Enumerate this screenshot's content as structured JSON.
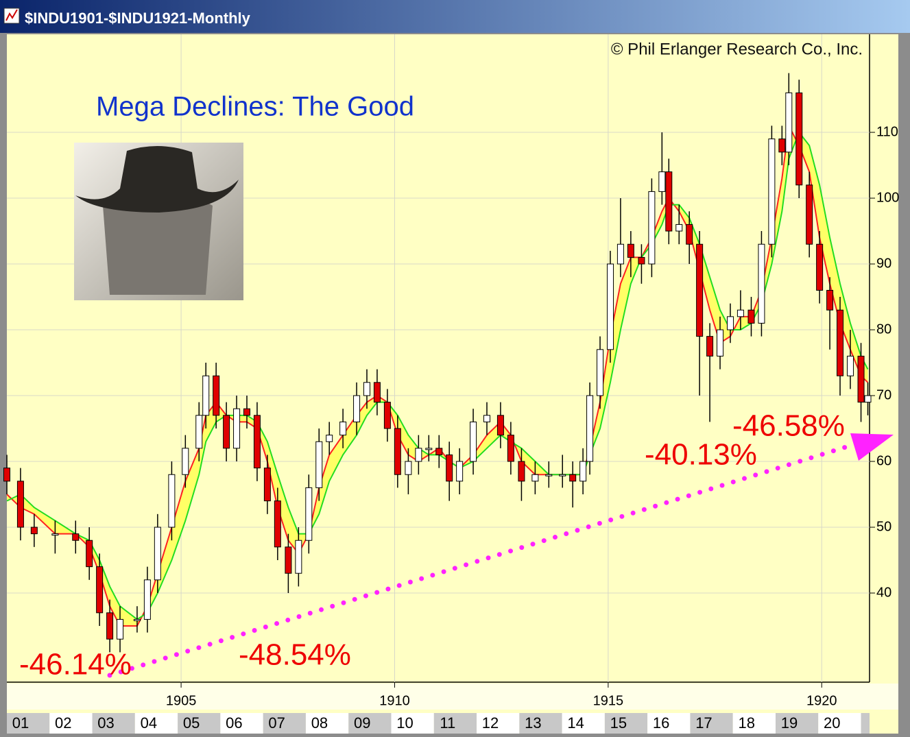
{
  "chart_data": {
    "type": "candlestick",
    "title": "$INDU1901-$INDU1921-Monthly",
    "subtitle": "Mega Declines: The Good",
    "copyright": "© Phil Erlanger Research Co., Inc.",
    "annotations": [
      "-46.14%",
      "-48.54%",
      "-40.13%",
      "-46.58%"
    ],
    "year_cells": [
      "01",
      "02",
      "03",
      "04",
      "05",
      "06",
      "07",
      "08",
      "09",
      "10",
      "11",
      "12",
      "13",
      "14",
      "15",
      "16",
      "17",
      "18",
      "19",
      "20"
    ],
    "x": [
      1900.92,
      1901.24,
      1901.56,
      1902.05,
      1902.53,
      1902.85,
      1903.09,
      1903.33,
      1903.57,
      1903.97,
      1904.21,
      1904.45,
      1904.78,
      1905.1,
      1905.42,
      1905.58,
      1905.82,
      1906.06,
      1906.3,
      1906.54,
      1906.78,
      1907.02,
      1907.26,
      1907.51,
      1907.75,
      1907.99,
      1908.23,
      1908.47,
      1908.79,
      1909.11,
      1909.35,
      1909.59,
      1909.83,
      1910.07,
      1910.32,
      1910.56,
      1910.8,
      1911.04,
      1911.28,
      1911.52,
      1911.84,
      1912.16,
      1912.48,
      1912.72,
      1912.97,
      1913.29,
      1913.61,
      1913.93,
      1914.17,
      1914.41,
      1914.57,
      1914.81,
      1915.05,
      1915.29,
      1915.53,
      1915.78,
      1916.02,
      1916.26,
      1916.42,
      1916.66,
      1916.9,
      1917.14,
      1917.38,
      1917.62,
      1917.86,
      1918.1,
      1918.35,
      1918.59,
      1918.83,
      1919.07,
      1919.23,
      1919.47,
      1919.71,
      1919.95,
      1920.19,
      1920.43,
      1920.67,
      1920.92,
      1921.08
    ],
    "open": [
      59,
      57,
      50,
      49,
      49,
      48,
      44,
      37,
      33,
      36,
      36,
      42,
      50,
      58,
      62,
      67,
      73,
      67,
      62,
      68,
      67,
      59,
      54,
      47,
      43,
      48,
      56,
      63,
      64,
      66,
      70,
      72,
      69,
      65,
      58,
      60,
      62,
      62,
      61,
      57,
      60,
      66,
      67,
      64,
      60,
      57,
      58,
      58,
      58,
      57,
      60,
      70,
      77,
      90,
      93,
      91,
      90,
      101,
      104,
      95,
      96,
      93,
      79,
      76,
      80,
      82,
      83,
      81,
      93,
      109,
      107,
      116,
      102,
      93,
      86,
      83,
      73,
      76,
      69
    ],
    "high": [
      61,
      59,
      52,
      51,
      51,
      50,
      46,
      39,
      38,
      38,
      44,
      52,
      60,
      64,
      69,
      75,
      75,
      69,
      70,
      70,
      69,
      61,
      56,
      49,
      50,
      58,
      65,
      66,
      68,
      72,
      74,
      74,
      71,
      67,
      62,
      64,
      64,
      64,
      63,
      62,
      68,
      69,
      69,
      66,
      62,
      60,
      60,
      61,
      60,
      62,
      72,
      79,
      92,
      100,
      95,
      93,
      103,
      110,
      106,
      99,
      98,
      95,
      81,
      82,
      84,
      86,
      85,
      95,
      111,
      111,
      119,
      118,
      104,
      95,
      88,
      85,
      80,
      78,
      72
    ],
    "low": [
      55,
      48,
      47,
      46,
      46,
      42,
      35,
      31,
      31,
      34,
      34,
      40,
      48,
      56,
      60,
      65,
      65,
      60,
      60,
      65,
      57,
      52,
      45,
      40,
      41,
      46,
      54,
      61,
      62,
      64,
      68,
      67,
      63,
      56,
      55,
      58,
      60,
      59,
      54,
      55,
      58,
      64,
      62,
      58,
      54,
      55,
      56,
      56,
      53,
      55,
      58,
      68,
      75,
      88,
      88,
      87,
      88,
      99,
      93,
      93,
      90,
      70,
      66,
      74,
      78,
      80,
      79,
      79,
      91,
      105,
      105,
      100,
      91,
      84,
      77,
      70,
      71,
      66,
      67
    ],
    "close": [
      57,
      50,
      49,
      49,
      48,
      44,
      37,
      33,
      36,
      36,
      42,
      50,
      58,
      62,
      67,
      73,
      67,
      62,
      68,
      67,
      59,
      54,
      47,
      43,
      48,
      56,
      63,
      64,
      66,
      70,
      72,
      69,
      65,
      58,
      60,
      62,
      62,
      61,
      57,
      60,
      66,
      67,
      64,
      60,
      57,
      58,
      58,
      58,
      57,
      60,
      70,
      77,
      90,
      93,
      91,
      90,
      101,
      104,
      95,
      96,
      93,
      79,
      76,
      80,
      82,
      83,
      81,
      93,
      109,
      107,
      116,
      102,
      93,
      86,
      83,
      73,
      76,
      69,
      70
    ],
    "up_color": "#ffffff",
    "down_color": "#e00000",
    "band_color": "#ffff66",
    "series": [
      {
        "color": "#ff2020",
        "values": [
          55,
          53,
          52,
          49,
          49,
          47,
          43,
          38,
          35,
          35,
          38,
          43,
          50,
          57,
          62,
          67,
          69,
          67,
          66,
          66,
          65,
          60,
          53,
          48,
          46,
          49,
          56,
          61,
          64,
          67,
          69,
          70,
          69,
          64,
          61,
          60,
          61,
          62,
          60,
          59,
          61,
          64,
          66,
          64,
          60,
          58,
          58,
          58,
          58,
          58,
          62,
          69,
          79,
          87,
          91,
          91,
          94,
          98,
          100,
          98,
          95,
          89,
          83,
          78,
          79,
          82,
          82,
          86,
          94,
          103,
          111,
          108,
          104,
          94,
          87,
          81,
          77,
          73,
          72
        ]
      },
      {
        "color": "#22dd22",
        "values": [
          54,
          55,
          53,
          51,
          49,
          48,
          45,
          41,
          38,
          36,
          37,
          40,
          45,
          51,
          58,
          63,
          66,
          67,
          67,
          67,
          66,
          63,
          58,
          53,
          49,
          49,
          52,
          57,
          61,
          64,
          67,
          69,
          69,
          67,
          64,
          62,
          61,
          61,
          60,
          59,
          60,
          62,
          64,
          63,
          62,
          60,
          58,
          58,
          58,
          58,
          61,
          65,
          72,
          80,
          87,
          91,
          93,
          96,
          99,
          99,
          97,
          93,
          88,
          83,
          80,
          80,
          81,
          84,
          90,
          98,
          106,
          110,
          108,
          102,
          94,
          87,
          81,
          76,
          74
        ]
      }
    ],
    "xlim": [
      1900.92,
      1921.12
    ],
    "xticks": [
      1905,
      1910,
      1915,
      1920
    ],
    "ylim": [
      26.46,
      124.9
    ],
    "yticks": [
      40,
      50,
      60,
      70,
      80,
      90,
      100,
      110
    ],
    "grid": true
  }
}
